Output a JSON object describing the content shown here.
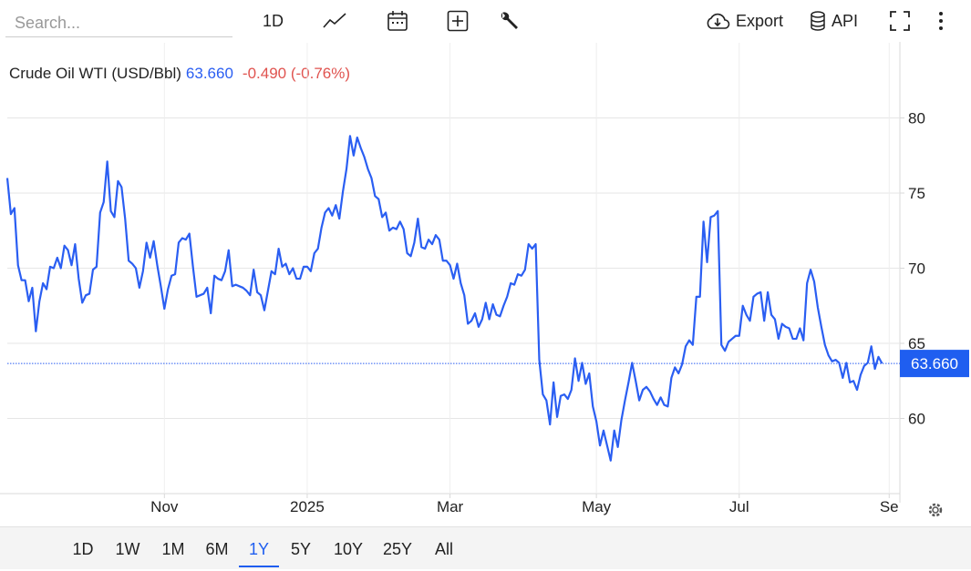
{
  "toolbar": {
    "search_placeholder": "Search...",
    "interval": "1D",
    "export": "Export",
    "api": "API"
  },
  "range_buttons": [
    "1D",
    "1W",
    "1M",
    "6M",
    "1Y",
    "5Y",
    "10Y",
    "25Y",
    "All"
  ],
  "chart_data": {
    "type": "line",
    "title": "Crude Oil WTI (USD/Bbl)",
    "last_price": {
      "value": 63.66,
      "label": "63.660"
    },
    "change": "-0.490 (-0.76%)",
    "series": [
      {
        "color": "#2a5ef2",
        "values": [
          76.0,
          73.6,
          74.0,
          70.2,
          69.2,
          69.2,
          67.8,
          68.7,
          65.8,
          67.8,
          69.0,
          68.6,
          70.1,
          70.0,
          70.7,
          70.0,
          71.5,
          71.2,
          70.2,
          71.6,
          69.3,
          67.7,
          68.2,
          68.3,
          69.9,
          70.1,
          73.7,
          74.4,
          77.1,
          73.8,
          73.4,
          75.8,
          75.4,
          73.3,
          70.5,
          70.3,
          70.0,
          68.7,
          69.8,
          71.7,
          70.7,
          71.8,
          70.2,
          68.8,
          67.3,
          68.6,
          69.5,
          69.6,
          71.7,
          72.0,
          71.9,
          72.3,
          70.1,
          68.1,
          68.2,
          68.3,
          68.7,
          67.0,
          69.5,
          69.3,
          69.2,
          69.8,
          71.2,
          68.8,
          68.9,
          68.8,
          68.7,
          68.5,
          68.2,
          69.9,
          68.4,
          68.2,
          67.2,
          68.5,
          69.8,
          69.6,
          71.3,
          70.1,
          70.3,
          69.6,
          70.0,
          69.3,
          69.3,
          70.1,
          70.1,
          69.8,
          71.0,
          71.3,
          72.7,
          73.7,
          74.0,
          73.5,
          74.2,
          73.3,
          75.1,
          76.6,
          78.8,
          77.5,
          78.7,
          78.0,
          77.4,
          76.6,
          76.0,
          74.8,
          74.6,
          73.4,
          73.7,
          72.5,
          72.7,
          72.6,
          73.1,
          72.6,
          71.0,
          70.8,
          71.7,
          73.3,
          71.4,
          71.3,
          71.9,
          71.6,
          72.2,
          71.9,
          70.5,
          70.5,
          70.2,
          69.3,
          70.3,
          69.0,
          68.2,
          66.3,
          66.5,
          67.0,
          66.1,
          66.6,
          67.7,
          66.6,
          67.6,
          66.9,
          66.8,
          67.5,
          68.1,
          69.0,
          68.9,
          69.6,
          69.5,
          69.9,
          71.6,
          71.3,
          71.6,
          63.9,
          61.6,
          61.2,
          59.6,
          62.4,
          60.1,
          61.5,
          61.6,
          61.3,
          61.9,
          64.0,
          62.5,
          63.7,
          62.3,
          63.0,
          60.8,
          59.8,
          58.2,
          59.2,
          58.2,
          57.2,
          59.2,
          58.1,
          59.9,
          61.2,
          62.4,
          63.7,
          62.5,
          61.2,
          61.9,
          62.1,
          61.8,
          61.3,
          60.9,
          61.4,
          60.9,
          60.8,
          62.7,
          63.4,
          63.0,
          63.6,
          64.8,
          65.2,
          64.9,
          68.1,
          68.1,
          73.1,
          70.4,
          73.4,
          73.5,
          73.8,
          64.9,
          64.5,
          65.1,
          65.3,
          65.5,
          65.5,
          67.5,
          66.9,
          66.5,
          68.1,
          68.3,
          68.4,
          66.5,
          68.4,
          66.9,
          66.6,
          65.3,
          66.3,
          66.1,
          66.0,
          65.3,
          65.3,
          66.0,
          65.2,
          69.0,
          69.9,
          69.1,
          67.4,
          66.1,
          64.9,
          64.2,
          63.8,
          63.9,
          63.7,
          62.7,
          63.7,
          62.4,
          62.5,
          61.9,
          62.9,
          63.5,
          63.7,
          64.8,
          63.3,
          64.1,
          63.66
        ]
      }
    ],
    "xlim": [
      0,
      250
    ],
    "xticks": [
      {
        "value": 44,
        "label": "Nov"
      },
      {
        "value": 84,
        "label": "2025"
      },
      {
        "value": 124,
        "label": "Mar"
      },
      {
        "value": 165,
        "label": "May"
      },
      {
        "value": 205,
        "label": "Jul"
      },
      {
        "value": 247,
        "label": "Se"
      }
    ],
    "ylim": [
      55,
      85
    ],
    "yticks": [
      60,
      65,
      70,
      75,
      80
    ],
    "grid": true
  }
}
